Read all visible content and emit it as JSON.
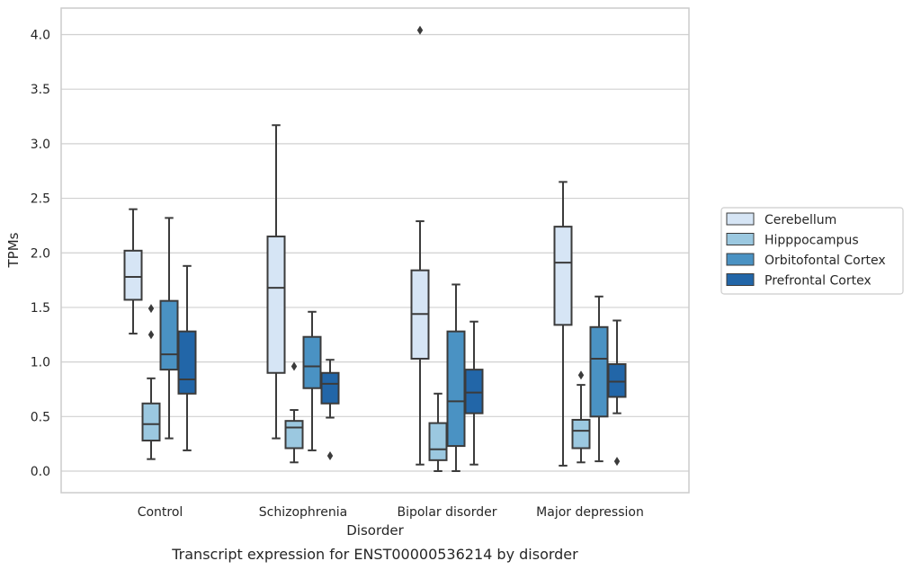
{
  "chart_data": {
    "type": "boxplot",
    "xlabel": "Disorder",
    "ylabel": "TPMs",
    "caption": "Transcript expression for ENST00000536214 by disorder",
    "ylim": [
      -0.2,
      4.25
    ],
    "yticks": [
      "0.0",
      "0.5",
      "1.0",
      "1.5",
      "2.0",
      "2.5",
      "3.0",
      "3.5",
      "4.0"
    ],
    "ytick_values": [
      0.0,
      0.5,
      1.0,
      1.5,
      2.0,
      2.5,
      3.0,
      3.5,
      4.0
    ],
    "grid": true,
    "legend_position": "right",
    "categories": [
      "Control",
      "Schizophrenia",
      "Bipolar disorder",
      "Major depression"
    ],
    "series": [
      {
        "name": "Cerebellum",
        "color": "#d6e5f5",
        "boxes": [
          {
            "whislo": 1.26,
            "q1": 1.57,
            "med": 1.78,
            "q3": 2.02,
            "whishi": 2.4,
            "fliers": []
          },
          {
            "whislo": 0.3,
            "q1": 0.9,
            "med": 1.68,
            "q3": 2.15,
            "whishi": 3.17,
            "fliers": []
          },
          {
            "whislo": 0.06,
            "q1": 1.03,
            "med": 1.44,
            "q3": 1.84,
            "whishi": 2.29,
            "fliers": [
              4.04
            ]
          },
          {
            "whislo": 0.05,
            "q1": 1.34,
            "med": 1.91,
            "q3": 2.24,
            "whishi": 2.65,
            "fliers": []
          }
        ]
      },
      {
        "name": "Hipppocampus",
        "color": "#9bc8e0",
        "boxes": [
          {
            "whislo": 0.11,
            "q1": 0.28,
            "med": 0.43,
            "q3": 0.62,
            "whishi": 0.85,
            "fliers": [
              1.25,
              1.49
            ]
          },
          {
            "whislo": 0.08,
            "q1": 0.21,
            "med": 0.4,
            "q3": 0.46,
            "whishi": 0.56,
            "fliers": [
              0.96
            ]
          },
          {
            "whislo": 0.0,
            "q1": 0.1,
            "med": 0.2,
            "q3": 0.44,
            "whishi": 0.71,
            "fliers": []
          },
          {
            "whislo": 0.08,
            "q1": 0.21,
            "med": 0.37,
            "q3": 0.47,
            "whishi": 0.79,
            "fliers": [
              0.88
            ]
          }
        ]
      },
      {
        "name": "Orbitofontal Cortex",
        "color": "#4a92c3",
        "boxes": [
          {
            "whislo": 0.3,
            "q1": 0.93,
            "med": 1.07,
            "q3": 1.56,
            "whishi": 2.32,
            "fliers": []
          },
          {
            "whislo": 0.19,
            "q1": 0.76,
            "med": 0.96,
            "q3": 1.23,
            "whishi": 1.46,
            "fliers": []
          },
          {
            "whislo": 0.0,
            "q1": 0.23,
            "med": 0.64,
            "q3": 1.28,
            "whishi": 1.71,
            "fliers": []
          },
          {
            "whislo": 0.09,
            "q1": 0.5,
            "med": 1.03,
            "q3": 1.32,
            "whishi": 1.6,
            "fliers": []
          }
        ]
      },
      {
        "name": "Prefrontal Cortex",
        "color": "#2266a8",
        "boxes": [
          {
            "whislo": 0.19,
            "q1": 0.71,
            "med": 0.84,
            "q3": 1.28,
            "whishi": 1.88,
            "fliers": []
          },
          {
            "whislo": 0.49,
            "q1": 0.62,
            "med": 0.8,
            "q3": 0.9,
            "whishi": 1.02,
            "fliers": [
              0.14
            ]
          },
          {
            "whislo": 0.06,
            "q1": 0.53,
            "med": 0.72,
            "q3": 0.93,
            "whishi": 1.37,
            "fliers": []
          },
          {
            "whislo": 0.53,
            "q1": 0.68,
            "med": 0.82,
            "q3": 0.98,
            "whishi": 1.38,
            "fliers": [
              0.09
            ]
          }
        ]
      }
    ]
  }
}
